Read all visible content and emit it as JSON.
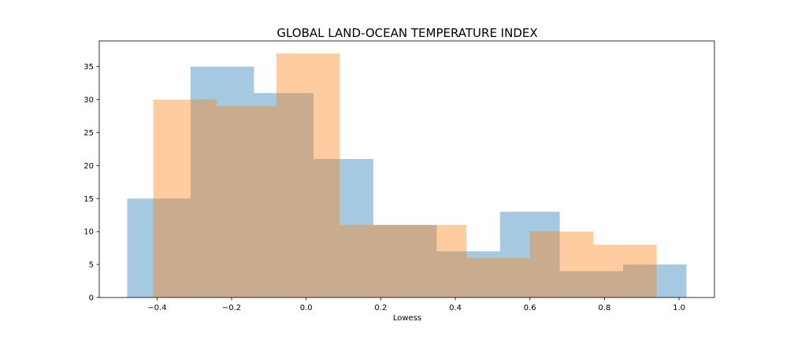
{
  "chart_data": {
    "type": "histogram",
    "title": "GLOBAL LAND-OCEAN TEMPERATURE INDEX",
    "xlabel": "Lowess",
    "ylabel": "",
    "xlim": [
      -0.555,
      1.095
    ],
    "ylim": [
      0,
      38.9
    ],
    "xticks": [
      -0.4,
      -0.2,
      0.0,
      0.2,
      0.4,
      0.6,
      0.8,
      1.0
    ],
    "xtick_labels": [
      "−0.4",
      "−0.2",
      "0.0",
      "0.2",
      "0.4",
      "0.6",
      "0.8",
      "1.0"
    ],
    "yticks": [
      0,
      5,
      10,
      15,
      20,
      25,
      30,
      35
    ],
    "ytick_labels": [
      "0",
      "5",
      "10",
      "15",
      "20",
      "25",
      "30",
      "35"
    ],
    "grid": false,
    "series": [
      {
        "color": "#1f77b4",
        "opacity": 0.4,
        "bin_edges": [
          -0.48,
          -0.31,
          -0.14,
          0.02,
          0.18,
          0.35,
          0.52,
          0.68,
          0.85,
          1.02
        ],
        "counts": [
          15,
          35,
          31,
          21,
          11,
          7,
          13,
          4,
          5
        ]
      },
      {
        "color": "#ff7f0e",
        "opacity": 0.4,
        "bin_edges": [
          -0.41,
          -0.24,
          -0.08,
          0.09,
          0.26,
          0.43,
          0.6,
          0.77,
          0.94
        ],
        "counts": [
          30,
          29,
          37,
          11,
          11,
          6,
          10,
          8
        ]
      }
    ]
  }
}
